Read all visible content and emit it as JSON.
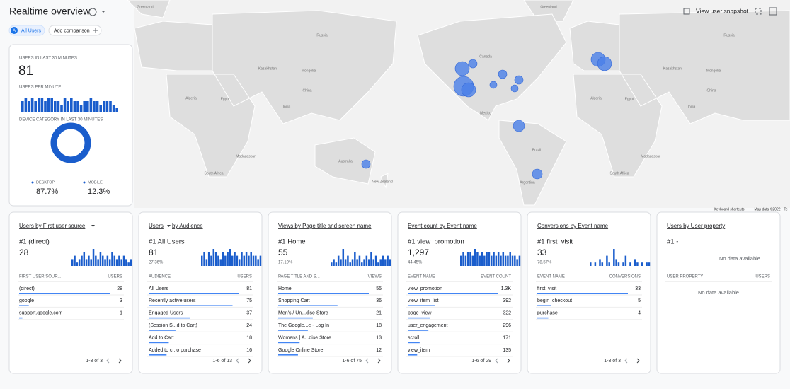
{
  "header": {
    "title": "Realtime overview",
    "user_chip_initial": "A",
    "user_chip": "All Users",
    "add_comparison": "Add comparison",
    "snapshot": "View user snapshot"
  },
  "map": {
    "labels": [
      "Greenland",
      "Greenland",
      "Canada",
      "Mexico",
      "Brazil",
      "Argentina",
      "Russia",
      "Russia",
      "Kazakhstan",
      "Kazakhstan",
      "Mongolia",
      "Mongolia",
      "China",
      "China",
      "India",
      "India",
      "Algeria",
      "Algeria",
      "Egypt",
      "Egypt",
      "South Africa",
      "South Africa",
      "Madagascar",
      "Madagascar",
      "Australia",
      "New Zealand"
    ],
    "footer": [
      "Keyboard shortcuts",
      "Map data ©2022",
      "Te"
    ]
  },
  "summary": {
    "users_label": "USERS IN LAST 30 MINUTES",
    "users_value": 81,
    "per_minute_label": "USERS PER MINUTE",
    "per_minute": [
      3,
      4,
      3,
      4,
      3,
      4,
      4,
      3,
      4,
      4,
      3,
      3,
      2,
      4,
      3,
      4,
      3,
      3,
      2,
      3,
      3,
      4,
      3,
      3,
      2,
      3,
      3,
      3,
      2,
      1
    ],
    "device_label": "DEVICE CATEGORY IN LAST 30 MINUTES",
    "devices": [
      {
        "name": "DESKTOP",
        "value": 87.7,
        "value_label": "87.7%",
        "color": "#1a5dcc"
      },
      {
        "name": "MOBILE",
        "value": 12.3,
        "value_label": "12.3%",
        "color": "#1a5dcc"
      }
    ]
  },
  "cards": [
    {
      "title": "Users by First user source",
      "top": "#1 (direct)",
      "top_value": 28,
      "bars": [
        2,
        3,
        1,
        2,
        3,
        4,
        2,
        3,
        2,
        5,
        3,
        2,
        4,
        3,
        2,
        3,
        2,
        4,
        3,
        2,
        3,
        2,
        3,
        2,
        1,
        2
      ],
      "columns": [
        "FIRST USER SOUR...",
        "USERS"
      ],
      "rows": [
        {
          "name": "(direct)",
          "value": 28
        },
        {
          "name": "google",
          "value": 3
        },
        {
          "name": "support.google.com",
          "value": 1
        }
      ],
      "pagination": "1-3 of 3"
    },
    {
      "title": "Users",
      "title_suffix": "by Audience",
      "top": "#1 All Users",
      "top_value": 81,
      "top_pct": "27.36%",
      "bars": [
        3,
        4,
        2,
        4,
        3,
        5,
        4,
        3,
        2,
        4,
        3,
        4,
        5,
        3,
        4,
        3,
        2,
        4,
        3,
        4,
        3,
        4,
        3,
        3,
        2,
        3
      ],
      "columns": [
        "AUDIENCE",
        "USERS"
      ],
      "rows": [
        {
          "name": "All Users",
          "value": 81
        },
        {
          "name": "Recently active users",
          "value": 75
        },
        {
          "name": "Engaged Users",
          "value": 37
        },
        {
          "name": "(Session S...d to Cart)",
          "value": 24
        },
        {
          "name": "Add to Cart",
          "value": 18
        },
        {
          "name": "Added to c...o purchase",
          "value": 16
        }
      ],
      "pagination": "1-6 of 13"
    },
    {
      "title": "Views by Page title and screen name",
      "top": "#1 Home",
      "top_value": 55,
      "top_pct": "17.19%",
      "bars": [
        1,
        2,
        1,
        3,
        2,
        5,
        2,
        3,
        1,
        2,
        4,
        2,
        3,
        1,
        2,
        3,
        2,
        4,
        2,
        3,
        1,
        2,
        3,
        2,
        3,
        2
      ],
      "columns": [
        "PAGE TITLE AND S...",
        "VIEWS"
      ],
      "rows": [
        {
          "name": "Home",
          "value": 55
        },
        {
          "name": "Shopping Cart",
          "value": 36
        },
        {
          "name": "Men's / Un...dise Store",
          "value": 21
        },
        {
          "name": "The Google...e - Log In",
          "value": 18
        },
        {
          "name": "Womens | A...dise Store",
          "value": 13
        },
        {
          "name": "Google Online Store",
          "value": 12
        }
      ],
      "pagination": "1-6 of 75"
    },
    {
      "title": "Event count by Event name",
      "top": "#1 view_promotion",
      "top_value": "1,297",
      "top_pct": "44.45%",
      "bars": [
        3,
        4,
        3,
        4,
        4,
        3,
        5,
        4,
        3,
        4,
        3,
        4,
        4,
        3,
        4,
        3,
        4,
        3,
        4,
        3,
        3,
        4,
        3,
        3,
        2,
        3
      ],
      "columns": [
        "EVENT NAME",
        "EVENT COUNT"
      ],
      "rows": [
        {
          "name": "view_promotion",
          "value": 1300,
          "value_label": "1.3K"
        },
        {
          "name": "view_item_list",
          "value": 392
        },
        {
          "name": "page_view",
          "value": 322
        },
        {
          "name": "user_engagement",
          "value": 296
        },
        {
          "name": "scroll",
          "value": 171
        },
        {
          "name": "view_item",
          "value": 135
        }
      ],
      "pagination": "1-6 of 29"
    },
    {
      "title": "Conversions by Event name",
      "top": "#1 first_visit",
      "top_value": 33,
      "top_pct": "78.57%",
      "bars": [
        1,
        0,
        1,
        0,
        2,
        1,
        0,
        3,
        1,
        0,
        5,
        2,
        1,
        0,
        1,
        3,
        0,
        1,
        0,
        2,
        1,
        0,
        1,
        0,
        1,
        1
      ],
      "columns": [
        "EVENT NAME",
        "CONVERSIONS"
      ],
      "rows": [
        {
          "name": "first_visit",
          "value": 33
        },
        {
          "name": "begin_checkout",
          "value": 5
        },
        {
          "name": "purchase",
          "value": 4
        }
      ],
      "pagination": "1-3 of 3"
    },
    {
      "title": "Users by User property",
      "top": "#1 -",
      "message": "No data available",
      "columns": [
        "USER PROPERTY",
        "USERS"
      ],
      "table_message": "No data available"
    }
  ]
}
